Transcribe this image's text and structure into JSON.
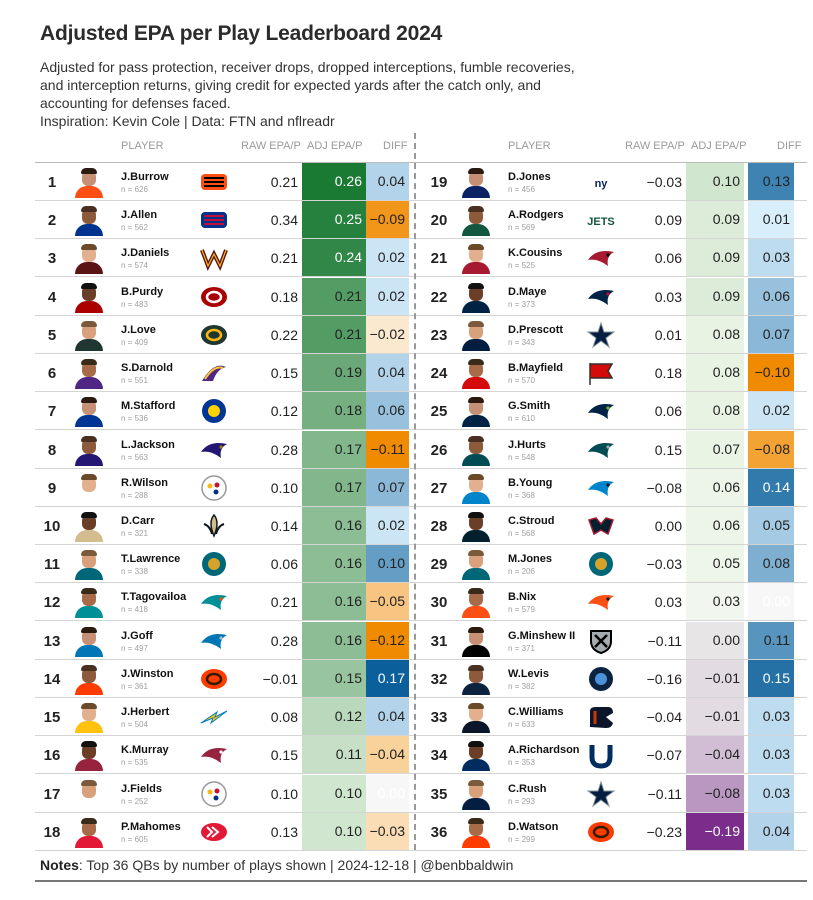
{
  "title": "Adjusted EPA per Play Leaderboard 2024",
  "subtitle_lines": [
    "Adjusted for pass protection, receiver drops, dropped interceptions, fumble recoveries,",
    "and interception returns, giving credit for expected yards after the catch only, and",
    "accounting for defenses faced.",
    "Inspiration: Kevin Cole | Data: FTN and nflreadr"
  ],
  "headers": {
    "player": "PLAYER",
    "raw": "RAW EPA/P",
    "adj": "ADJ EPA/P",
    "diff": "DIFF"
  },
  "notes": {
    "label": "Notes",
    "text": ": Top 36 QBs by number of plays shown | 2024-12-18 | @benbbaldwin"
  },
  "chart_data": {
    "type": "table",
    "columns": [
      "rank",
      "player",
      "n",
      "team",
      "raw_epa",
      "adj_epa",
      "diff"
    ],
    "rows": [
      {
        "rank": "1",
        "name": "J.Burrow",
        "n": "n = 626",
        "team": "CIN",
        "raw": "0.21",
        "adj": "0.26",
        "diff": "0.04"
      },
      {
        "rank": "2",
        "name": "J.Allen",
        "n": "n = 562",
        "team": "BUF",
        "raw": "0.34",
        "adj": "0.25",
        "diff": "−0.09"
      },
      {
        "rank": "3",
        "name": "J.Daniels",
        "n": "n = 574",
        "team": "WAS",
        "raw": "0.21",
        "adj": "0.24",
        "diff": "0.02"
      },
      {
        "rank": "4",
        "name": "B.Purdy",
        "n": "n = 483",
        "team": "SF",
        "raw": "0.18",
        "adj": "0.21",
        "diff": "0.02"
      },
      {
        "rank": "5",
        "name": "J.Love",
        "n": "n = 409",
        "team": "GB",
        "raw": "0.22",
        "adj": "0.21",
        "diff": "−0.02"
      },
      {
        "rank": "6",
        "name": "S.Darnold",
        "n": "n = 551",
        "team": "MIN",
        "raw": "0.15",
        "adj": "0.19",
        "diff": "0.04"
      },
      {
        "rank": "7",
        "name": "M.Stafford",
        "n": "n = 536",
        "team": "LA",
        "raw": "0.12",
        "adj": "0.18",
        "diff": "0.06"
      },
      {
        "rank": "8",
        "name": "L.Jackson",
        "n": "n = 563",
        "team": "BAL",
        "raw": "0.28",
        "adj": "0.17",
        "diff": "−0.11"
      },
      {
        "rank": "9",
        "name": "R.Wilson",
        "n": "n = 288",
        "team": "PIT",
        "raw": "0.10",
        "adj": "0.17",
        "diff": "0.07"
      },
      {
        "rank": "10",
        "name": "D.Carr",
        "n": "n = 321",
        "team": "NO",
        "raw": "0.14",
        "adj": "0.16",
        "diff": "0.02"
      },
      {
        "rank": "11",
        "name": "T.Lawrence",
        "n": "n = 338",
        "team": "JAX",
        "raw": "0.06",
        "adj": "0.16",
        "diff": "0.10"
      },
      {
        "rank": "12",
        "name": "T.Tagovailoa",
        "n": "n = 418",
        "team": "MIA",
        "raw": "0.21",
        "adj": "0.16",
        "diff": "−0.05"
      },
      {
        "rank": "13",
        "name": "J.Goff",
        "n": "n = 497",
        "team": "DET",
        "raw": "0.28",
        "adj": "0.16",
        "diff": "−0.12"
      },
      {
        "rank": "14",
        "name": "J.Winston",
        "n": "n = 361",
        "team": "CLE",
        "raw": "−0.01",
        "adj": "0.15",
        "diff": "0.17"
      },
      {
        "rank": "15",
        "name": "J.Herbert",
        "n": "n = 504",
        "team": "LAC",
        "raw": "0.08",
        "adj": "0.12",
        "diff": "0.04"
      },
      {
        "rank": "16",
        "name": "K.Murray",
        "n": "n = 535",
        "team": "ARI",
        "raw": "0.15",
        "adj": "0.11",
        "diff": "−0.04"
      },
      {
        "rank": "17",
        "name": "J.Fields",
        "n": "n = 252",
        "team": "PIT",
        "raw": "0.10",
        "adj": "0.10",
        "diff": "0.00"
      },
      {
        "rank": "18",
        "name": "P.Mahomes",
        "n": "n = 605",
        "team": "KC",
        "raw": "0.13",
        "adj": "0.10",
        "diff": "−0.03"
      },
      {
        "rank": "19",
        "name": "D.Jones",
        "n": "n = 456",
        "team": "NYG",
        "raw": "−0.03",
        "adj": "0.10",
        "diff": "0.13"
      },
      {
        "rank": "20",
        "name": "A.Rodgers",
        "n": "n = 569",
        "team": "NYJ",
        "raw": "0.09",
        "adj": "0.09",
        "diff": "0.01"
      },
      {
        "rank": "21",
        "name": "K.Cousins",
        "n": "n = 525",
        "team": "ATL",
        "raw": "0.06",
        "adj": "0.09",
        "diff": "0.03"
      },
      {
        "rank": "22",
        "name": "D.Maye",
        "n": "n = 373",
        "team": "NE",
        "raw": "0.03",
        "adj": "0.09",
        "diff": "0.06"
      },
      {
        "rank": "23",
        "name": "D.Prescott",
        "n": "n = 343",
        "team": "DAL",
        "raw": "0.01",
        "adj": "0.08",
        "diff": "0.07"
      },
      {
        "rank": "24",
        "name": "B.Mayfield",
        "n": "n = 570",
        "team": "TB",
        "raw": "0.18",
        "adj": "0.08",
        "diff": "−0.10"
      },
      {
        "rank": "25",
        "name": "G.Smith",
        "n": "n = 610",
        "team": "SEA",
        "raw": "0.06",
        "adj": "0.08",
        "diff": "0.02"
      },
      {
        "rank": "26",
        "name": "J.Hurts",
        "n": "n = 548",
        "team": "PHI",
        "raw": "0.15",
        "adj": "0.07",
        "diff": "−0.08"
      },
      {
        "rank": "27",
        "name": "B.Young",
        "n": "n = 368",
        "team": "CAR",
        "raw": "−0.08",
        "adj": "0.06",
        "diff": "0.14"
      },
      {
        "rank": "28",
        "name": "C.Stroud",
        "n": "n = 568",
        "team": "HOU",
        "raw": "0.00",
        "adj": "0.06",
        "diff": "0.05"
      },
      {
        "rank": "29",
        "name": "M.Jones",
        "n": "n = 206",
        "team": "JAX",
        "raw": "−0.03",
        "adj": "0.05",
        "diff": "0.08"
      },
      {
        "rank": "30",
        "name": "B.Nix",
        "n": "n = 579",
        "team": "DEN",
        "raw": "0.03",
        "adj": "0.03",
        "diff": "0.00"
      },
      {
        "rank": "31",
        "name": "G.Minshew II",
        "n": "n = 371",
        "team": "LV",
        "raw": "−0.11",
        "adj": "0.00",
        "diff": "0.11"
      },
      {
        "rank": "32",
        "name": "W.Levis",
        "n": "n = 382",
        "team": "TEN",
        "raw": "−0.16",
        "adj": "−0.01",
        "diff": "0.15"
      },
      {
        "rank": "33",
        "name": "C.Williams",
        "n": "n = 633",
        "team": "CHI",
        "raw": "−0.04",
        "adj": "−0.01",
        "diff": "0.03"
      },
      {
        "rank": "34",
        "name": "A.Richardson",
        "n": "n = 353",
        "team": "IND",
        "raw": "−0.07",
        "adj": "−0.04",
        "diff": "0.03"
      },
      {
        "rank": "35",
        "name": "C.Rush",
        "n": "n = 293",
        "team": "DAL",
        "raw": "−0.11",
        "adj": "−0.08",
        "diff": "0.03"
      },
      {
        "rank": "36",
        "name": "D.Watson",
        "n": "n = 299",
        "team": "CLE",
        "raw": "−0.23",
        "adj": "−0.19",
        "diff": "0.04"
      }
    ]
  },
  "team_logos": {
    "CIN": {
      "icon": "bengals-logo-icon",
      "bg": "#FB4F14",
      "fg": "#000000",
      "shape": "stripe"
    },
    "BUF": {
      "icon": "bills-logo-icon",
      "bg": "#00338D",
      "fg": "#C60C30",
      "shape": "stripe"
    },
    "WAS": {
      "icon": "commanders-logo-icon",
      "bg": "#5A1414",
      "fg": "#FFB612",
      "shape": "w"
    },
    "SF": {
      "icon": "49ers-logo-icon",
      "bg": "#AA0000",
      "fg": "#FFFFFF",
      "shape": "oval"
    },
    "GB": {
      "icon": "packers-logo-icon",
      "bg": "#203731",
      "fg": "#FFB612",
      "shape": "oval"
    },
    "MIN": {
      "icon": "vikings-logo-icon",
      "bg": "#4F2683",
      "fg": "#FFC62F",
      "shape": "horn"
    },
    "LA": {
      "icon": "rams-logo-icon",
      "bg": "#003594",
      "fg": "#FFD100",
      "shape": "round"
    },
    "BAL": {
      "icon": "ravens-logo-icon",
      "bg": "#241773",
      "fg": "#9E7C0C",
      "shape": "bird"
    },
    "PIT": {
      "icon": "steelers-logo-icon",
      "bg": "#FFFFFF",
      "fg": "#101820",
      "shape": "ring"
    },
    "NO": {
      "icon": "saints-logo-icon",
      "bg": "#D3BC8D",
      "fg": "#101820",
      "shape": "fleur"
    },
    "JAX": {
      "icon": "jaguars-logo-icon",
      "bg": "#006778",
      "fg": "#D7A22A",
      "shape": "round"
    },
    "MIA": {
      "icon": "dolphins-logo-icon",
      "bg": "#008E97",
      "fg": "#FC4C02",
      "shape": "bird"
    },
    "DET": {
      "icon": "lions-logo-icon",
      "bg": "#0076B6",
      "fg": "#B0B7BC",
      "shape": "bird"
    },
    "CLE": {
      "icon": "browns-logo-icon",
      "bg": "#FF3C00",
      "fg": "#311D00",
      "shape": "oval"
    },
    "LAC": {
      "icon": "chargers-logo-icon",
      "bg": "#FFC20E",
      "fg": "#0080C6",
      "shape": "bolt"
    },
    "ARI": {
      "icon": "cardinals-logo-icon",
      "bg": "#97233F",
      "fg": "#FFFFFF",
      "shape": "bird"
    },
    "KC": {
      "icon": "chiefs-logo-icon",
      "bg": "#E31837",
      "fg": "#FFFFFF",
      "shape": "arrow"
    },
    "NYG": {
      "icon": "giants-logo-icon",
      "bg": "#0B2265",
      "fg": "#A71930",
      "shape": "text"
    },
    "NYJ": {
      "icon": "jets-logo-icon",
      "bg": "#125740",
      "fg": "#FFFFFF",
      "shape": "text"
    },
    "ATL": {
      "icon": "falcons-logo-icon",
      "bg": "#A71930",
      "fg": "#000000",
      "shape": "bird"
    },
    "NE": {
      "icon": "patriots-logo-icon",
      "bg": "#002244",
      "fg": "#C60C30",
      "shape": "bird"
    },
    "DAL": {
      "icon": "cowboys-logo-icon",
      "bg": "#041E42",
      "fg": "#869397",
      "shape": "star"
    },
    "TB": {
      "icon": "buccaneers-logo-icon",
      "bg": "#D50A0A",
      "fg": "#34302B",
      "shape": "flag"
    },
    "SEA": {
      "icon": "seahawks-logo-icon",
      "bg": "#002244",
      "fg": "#69BE28",
      "shape": "bird"
    },
    "PHI": {
      "icon": "eagles-logo-icon",
      "bg": "#004C54",
      "fg": "#A5ACAF",
      "shape": "bird"
    },
    "CAR": {
      "icon": "panthers-logo-icon",
      "bg": "#0085CA",
      "fg": "#101820",
      "shape": "bird"
    },
    "HOU": {
      "icon": "texans-logo-icon",
      "bg": "#03202F",
      "fg": "#A71930",
      "shape": "bull"
    },
    "DEN": {
      "icon": "broncos-logo-icon",
      "bg": "#FB4F14",
      "fg": "#002244",
      "shape": "bird"
    },
    "LV": {
      "icon": "raiders-logo-icon",
      "bg": "#000000",
      "fg": "#A5ACAF",
      "shape": "shield"
    },
    "TEN": {
      "icon": "titans-logo-icon",
      "bg": "#0C2340",
      "fg": "#4B92DB",
      "shape": "round"
    },
    "CHI": {
      "icon": "bears-logo-icon",
      "bg": "#0B162A",
      "fg": "#C83803",
      "shape": "bear"
    },
    "IND": {
      "icon": "colts-logo-icon",
      "bg": "#002C5F",
      "fg": "#FFFFFF",
      "shape": "horseshoe"
    }
  },
  "colors": {
    "adj_high": "#1a7a33",
    "adj_mid": "#e8f3e3",
    "adj_low": "#7b2d8b",
    "diff_pos_high": "#0b5f9a",
    "diff_pos_low": "#d8eefb",
    "diff_neg_high": "#f08a00",
    "diff_neg_low": "#fbe9cf"
  }
}
